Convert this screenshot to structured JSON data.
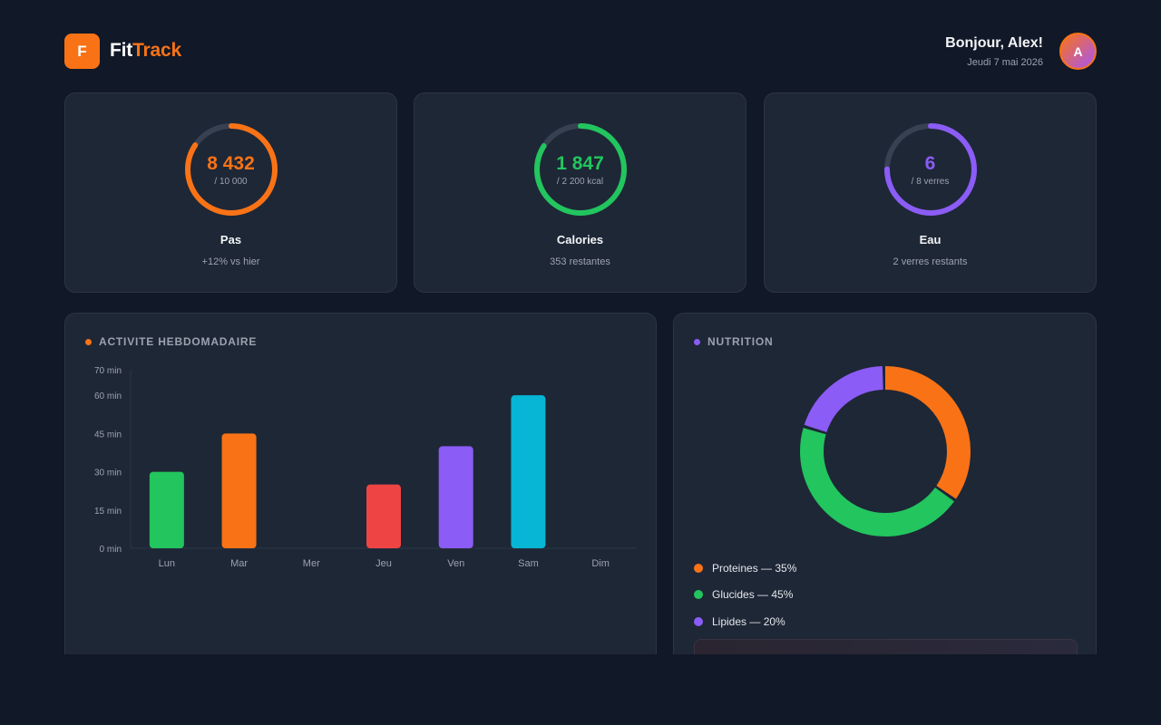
{
  "brand": {
    "logo_letter": "F",
    "name_part1": "Fit",
    "name_part2": "Track",
    "accent": "#f97316"
  },
  "user": {
    "greeting": "Bonjour, Alex!",
    "date": "Jeudi 7 mai 2026",
    "avatar_initial": "A"
  },
  "stats": [
    {
      "value": "8 432",
      "target": "/ 10 000",
      "label": "Pas",
      "sub": "+12% vs hier",
      "progress": 0.8432,
      "color": "#f97316"
    },
    {
      "value": "1 847",
      "target": "/ 2 200 kcal",
      "label": "Calories",
      "sub": "353 restantes",
      "progress": 0.8395,
      "color": "#22c55e"
    },
    {
      "value": "6",
      "target": "/ 8 verres",
      "label": "Eau",
      "sub": "2 verres restants",
      "progress": 0.75,
      "color": "#8b5cf6"
    }
  ],
  "activity": {
    "title": "ACTIVITE HEBDOMADAIRE",
    "title_dot_color": "#f97316"
  },
  "chart_data": {
    "type": "bar",
    "categories": [
      "Lun",
      "Mar",
      "Mer",
      "Jeu",
      "Ven",
      "Sam",
      "Dim"
    ],
    "values": [
      30,
      45,
      0,
      25,
      40,
      60,
      0
    ],
    "colors": [
      "#22c55e",
      "#f97316",
      "#6b7280",
      "#ef4444",
      "#8b5cf6",
      "#06b6d4",
      "#6b7280"
    ],
    "yticks": [
      0,
      15,
      30,
      45,
      60,
      70
    ],
    "ytick_labels": [
      "0 min",
      "15 min",
      "30 min",
      "45 min",
      "60 min",
      "70 min"
    ],
    "ylim": [
      0,
      70
    ],
    "title": "ACTIVITE HEBDOMADAIRE",
    "xlabel": "",
    "ylabel": ""
  },
  "nutrition": {
    "title": "NUTRITION",
    "title_dot_color": "#8b5cf6",
    "segments": [
      {
        "label": "Proteines — 35%",
        "percent": 35,
        "color": "#f97316"
      },
      {
        "label": "Glucides — 45%",
        "percent": 45,
        "color": "#22c55e"
      },
      {
        "label": "Lipides — 20%",
        "percent": 20,
        "color": "#8b5cf6"
      }
    ]
  }
}
